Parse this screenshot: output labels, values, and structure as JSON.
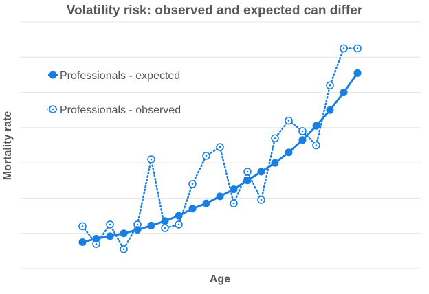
{
  "chart_data": {
    "type": "line",
    "title": "Volatility risk: observed and expected can differ",
    "xlabel": "Age",
    "ylabel": "Mortality rate",
    "x": [
      1,
      2,
      3,
      4,
      5,
      6,
      7,
      8,
      9,
      10,
      11,
      12,
      13,
      14,
      15,
      16,
      17,
      18,
      19,
      20,
      21
    ],
    "ylim": [
      0,
      7
    ],
    "grid": true,
    "legend_position": "top-left",
    "series": [
      {
        "name": "Professionals - expected",
        "style": "solid",
        "color": "#1a7fe0",
        "values": [
          0.75,
          0.85,
          0.92,
          1.0,
          1.1,
          1.22,
          1.35,
          1.5,
          1.7,
          1.85,
          2.05,
          2.25,
          2.5,
          2.75,
          3.0,
          3.3,
          3.65,
          4.05,
          4.5,
          5.0,
          5.55
        ]
      },
      {
        "name": "Professionals - observed",
        "style": "dotted",
        "color": "#1a7fe0",
        "values": [
          1.2,
          0.7,
          1.25,
          0.55,
          1.25,
          3.1,
          1.15,
          1.25,
          2.4,
          3.2,
          3.45,
          1.85,
          2.75,
          1.95,
          3.7,
          4.2,
          3.9,
          3.5,
          5.2,
          6.25,
          6.25
        ]
      }
    ]
  }
}
